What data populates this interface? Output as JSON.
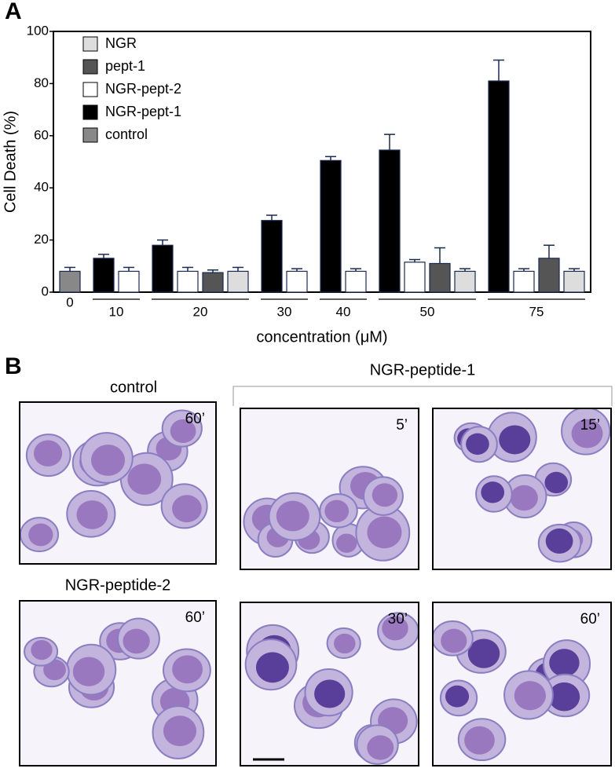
{
  "panel_labels": [
    "A",
    "B"
  ],
  "chart_data": {
    "type": "bar",
    "ylabel": "Cell Death (%)",
    "xlabel": "concentration (μM)",
    "categories": [
      "0",
      "10",
      "20",
      "30",
      "40",
      "50",
      "75"
    ],
    "series": [
      {
        "name": "control",
        "color": "#888888",
        "values": [
          8,
          null,
          null,
          null,
          null,
          null,
          null
        ],
        "errors": [
          1.5,
          null,
          null,
          null,
          null,
          null,
          null
        ]
      },
      {
        "name": "NGR-pept-1",
        "color": "#000000",
        "values": [
          null,
          13,
          18,
          27.5,
          50.5,
          54.5,
          81
        ],
        "errors": [
          null,
          1.5,
          2,
          2,
          1.5,
          6,
          8
        ]
      },
      {
        "name": "NGR-pept-2",
        "color": "#ffffff",
        "values": [
          null,
          8,
          8,
          8,
          8,
          11.5,
          8
        ],
        "errors": [
          null,
          1.5,
          1.5,
          1,
          1,
          1,
          1
        ]
      },
      {
        "name": "pept-1",
        "color": "#555555",
        "values": [
          null,
          null,
          7.5,
          null,
          null,
          11,
          13
        ],
        "errors": [
          null,
          null,
          1,
          null,
          null,
          6,
          5
        ]
      },
      {
        "name": "NGR",
        "color": "#dddddd",
        "values": [
          null,
          null,
          8,
          null,
          null,
          8,
          8
        ],
        "errors": [
          null,
          null,
          1.5,
          null,
          null,
          1,
          1
        ]
      }
    ],
    "ylim": [
      0,
      100
    ],
    "yticks": [
      0,
      20,
      40,
      60,
      80,
      100
    ],
    "grid": false,
    "legend": "upper-left"
  },
  "panel_b": {
    "group_title": "NGR-peptide-1",
    "images": [
      {
        "title": "control",
        "time": "60’"
      },
      {
        "title": "NGR-peptide-2",
        "time": "60’"
      },
      {
        "time": "5’"
      },
      {
        "time": "15’"
      },
      {
        "time": "30’"
      },
      {
        "time": "60’"
      }
    ]
  }
}
